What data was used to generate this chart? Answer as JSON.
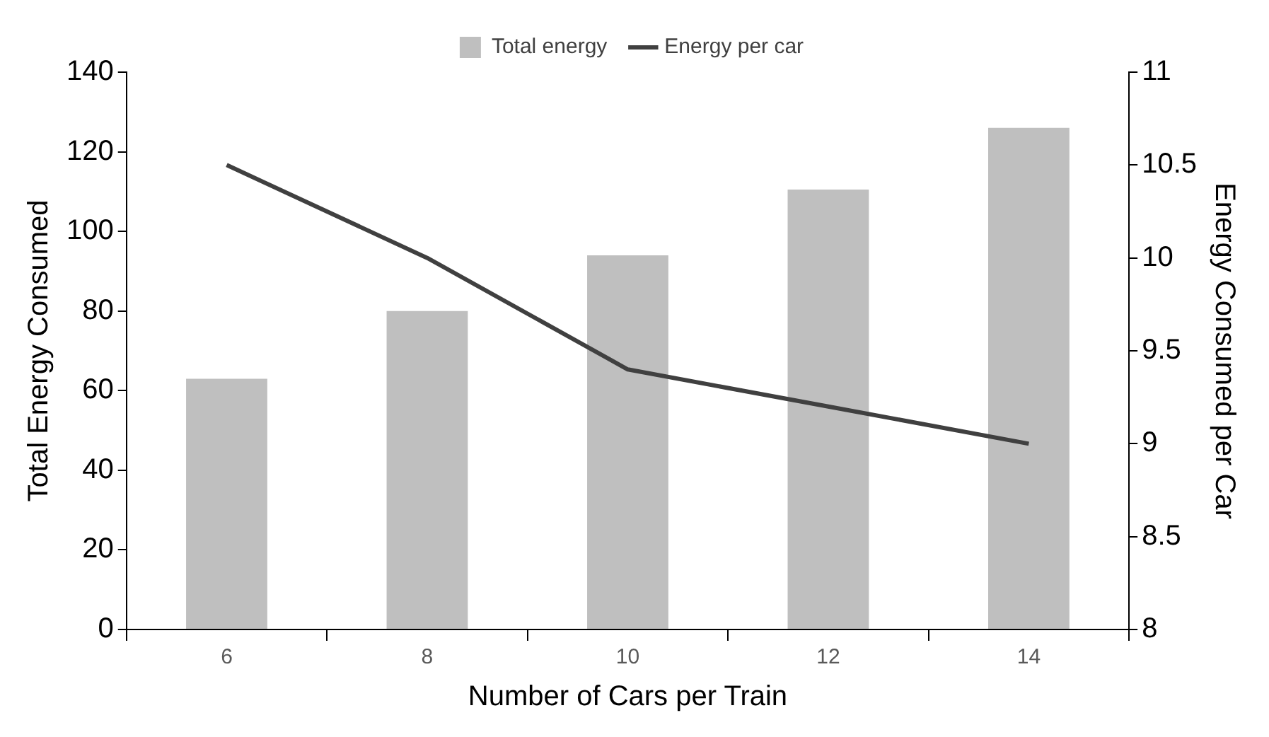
{
  "chart_data": {
    "type": "bar",
    "xlabel": "Number of Cars per Train",
    "ylabel": "Total Energy Consumed",
    "y2label": "Energy Consumed per Car",
    "categories": [
      "6",
      "8",
      "10",
      "12",
      "14"
    ],
    "series": [
      {
        "name": "Total energy",
        "color": "#bfbfbf",
        "values": [
          63,
          80,
          94,
          110.5,
          126
        ]
      },
      {
        "type": "line",
        "name": "Energy per car",
        "color": "#404040",
        "axis": "y2",
        "values": [
          10.5,
          10,
          9.4,
          9.2,
          9
        ]
      }
    ],
    "ylim": [
      0,
      140
    ],
    "yticks": [
      0,
      20,
      40,
      60,
      80,
      100,
      120,
      140
    ],
    "y2lim": [
      8,
      11
    ],
    "y2ticks": [
      8,
      8.5,
      9,
      9.5,
      10,
      10.5,
      11
    ],
    "legend": "top",
    "marker": "none",
    "line_style": "solid"
  }
}
